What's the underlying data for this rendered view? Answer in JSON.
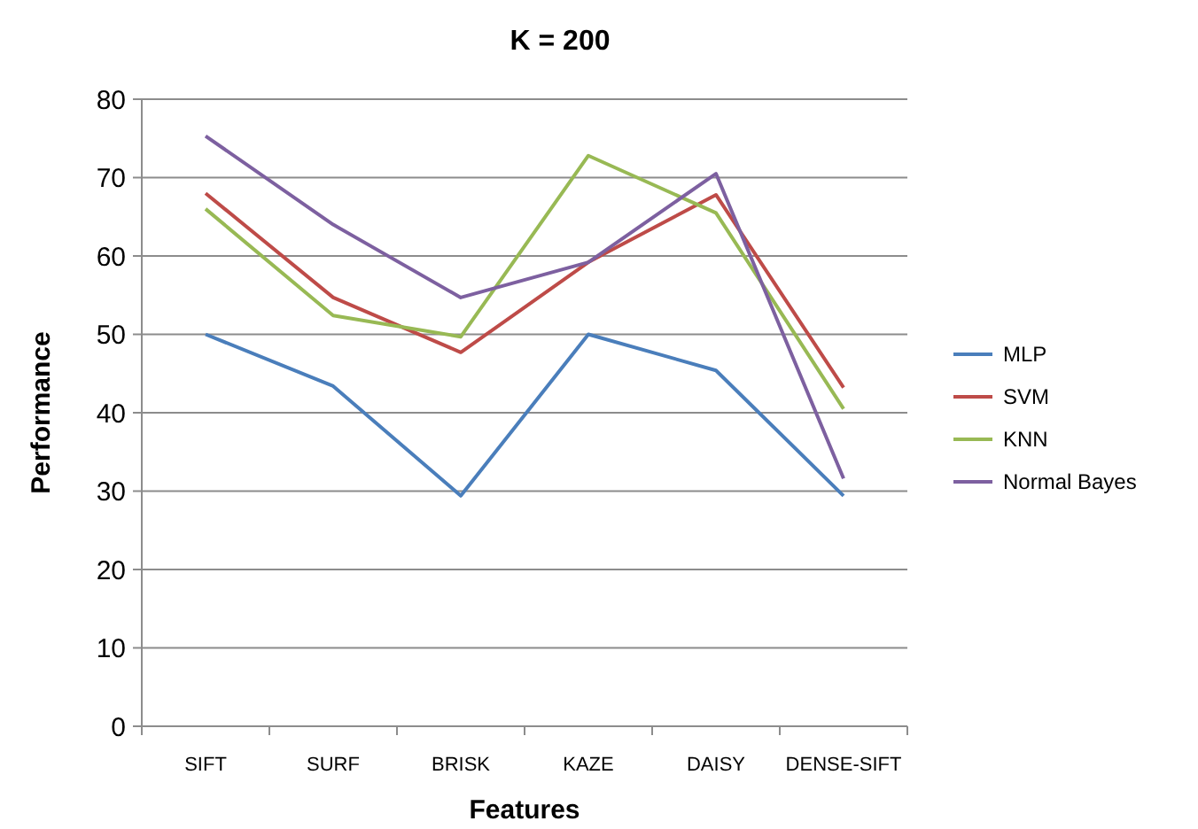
{
  "chart_data": {
    "type": "line",
    "title": "K = 200",
    "xlabel": "Features",
    "ylabel": "Performance",
    "categories": [
      "SIFT",
      "SURF",
      "BRISK",
      "KAZE",
      "DAISY",
      "DENSE-SIFT"
    ],
    "series": [
      {
        "name": "MLP",
        "color": "#4a7ebb",
        "values": [
          50,
          43.4,
          29.4,
          50,
          45.4,
          29.4
        ]
      },
      {
        "name": "SVM",
        "color": "#be4b48",
        "values": [
          68,
          54.7,
          47.7,
          59.2,
          67.8,
          43.2
        ]
      },
      {
        "name": "KNN",
        "color": "#98b954",
        "values": [
          66,
          52.4,
          49.7,
          72.8,
          65.5,
          40.5
        ]
      },
      {
        "name": "Normal Bayes",
        "color": "#7d60a0",
        "values": [
          75.3,
          64,
          54.7,
          59.2,
          70.5,
          31.6
        ]
      }
    ],
    "ylim": [
      0,
      80
    ],
    "yticks": [
      0,
      10,
      20,
      30,
      40,
      50,
      60,
      70,
      80
    ],
    "grid": "y",
    "legend": "right",
    "marker": "none",
    "line_style": "solid"
  }
}
